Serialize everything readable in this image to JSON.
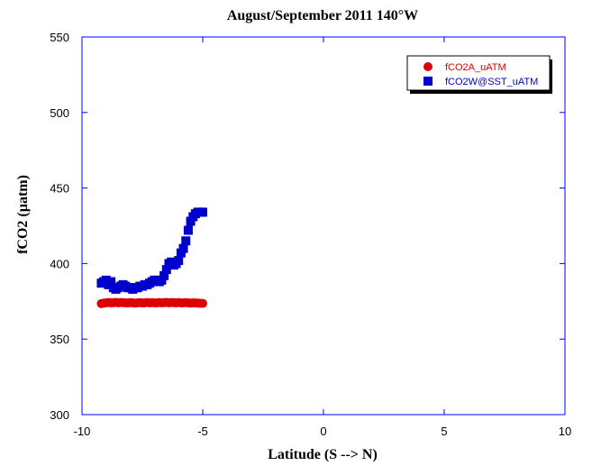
{
  "chart_data": {
    "type": "scatter",
    "title": "August/September 2011 140°W",
    "xlabel": "Latitude (S --> N)",
    "ylabel": "fCO2 (µatm)",
    "xlim": [
      -10,
      10
    ],
    "ylim": [
      300,
      550
    ],
    "x_ticks": [
      -10,
      -5,
      0,
      5,
      10
    ],
    "y_ticks": [
      300,
      350,
      400,
      450,
      500,
      550
    ],
    "grid": false,
    "legend_position": "top-right",
    "colors": {
      "axis": "#0000ff",
      "series_a": "#dd0000",
      "series_w": "#0000cc"
    },
    "series": [
      {
        "name": "fCO2A_uATM",
        "marker": "circle",
        "x": [
          -9.2,
          -9.1,
          -9.0,
          -8.9,
          -8.8,
          -8.7,
          -8.6,
          -8.5,
          -8.4,
          -8.3,
          -8.2,
          -8.1,
          -8.0,
          -7.9,
          -7.8,
          -7.7,
          -7.6,
          -7.5,
          -7.4,
          -7.3,
          -7.2,
          -7.1,
          -7.0,
          -6.9,
          -6.8,
          -6.7,
          -6.6,
          -6.5,
          -6.4,
          -6.3,
          -6.2,
          -6.1,
          -6.0,
          -5.9,
          -5.8,
          -5.7,
          -5.6,
          -5.5,
          -5.4,
          -5.3,
          -5.2,
          -5.1,
          -5.0
        ],
        "y": [
          373.5,
          373.8,
          374.0,
          374.2,
          374.0,
          374.1,
          374.3,
          374.0,
          374.2,
          374.1,
          374.0,
          373.9,
          374.1,
          374.0,
          373.8,
          374.0,
          374.1,
          373.9,
          374.0,
          374.2,
          374.0,
          374.1,
          374.0,
          373.9,
          374.2,
          374.0,
          374.1,
          374.3,
          374.0,
          374.2,
          374.1,
          374.0,
          374.2,
          374.0,
          373.9,
          374.1,
          374.0,
          373.8,
          374.0,
          373.9,
          373.8,
          373.7,
          373.6
        ]
      },
      {
        "name": "fCO2W@SST_uATM",
        "marker": "square",
        "x": [
          -9.2,
          -9.1,
          -9.0,
          -8.9,
          -8.8,
          -8.7,
          -8.6,
          -8.5,
          -8.4,
          -8.3,
          -8.2,
          -8.1,
          -8.0,
          -7.9,
          -7.8,
          -7.7,
          -7.6,
          -7.5,
          -7.4,
          -7.3,
          -7.2,
          -7.1,
          -7.0,
          -6.9,
          -6.8,
          -6.7,
          -6.6,
          -6.5,
          -6.4,
          -6.3,
          -6.2,
          -6.1,
          -6.0,
          -5.9,
          -5.8,
          -5.7,
          -5.6,
          -5.5,
          -5.4,
          -5.3,
          -5.2,
          -5.1,
          -5.0
        ],
        "y": [
          387,
          388,
          389,
          386,
          388,
          384,
          383,
          384,
          385,
          386,
          385,
          384,
          384,
          383,
          384,
          384,
          385,
          385,
          386,
          386,
          387,
          388,
          389,
          389,
          388,
          389,
          392,
          396,
          400,
          401,
          399,
          400,
          402,
          407,
          410,
          415,
          422,
          428,
          431,
          433,
          434,
          434,
          434
        ]
      }
    ]
  }
}
